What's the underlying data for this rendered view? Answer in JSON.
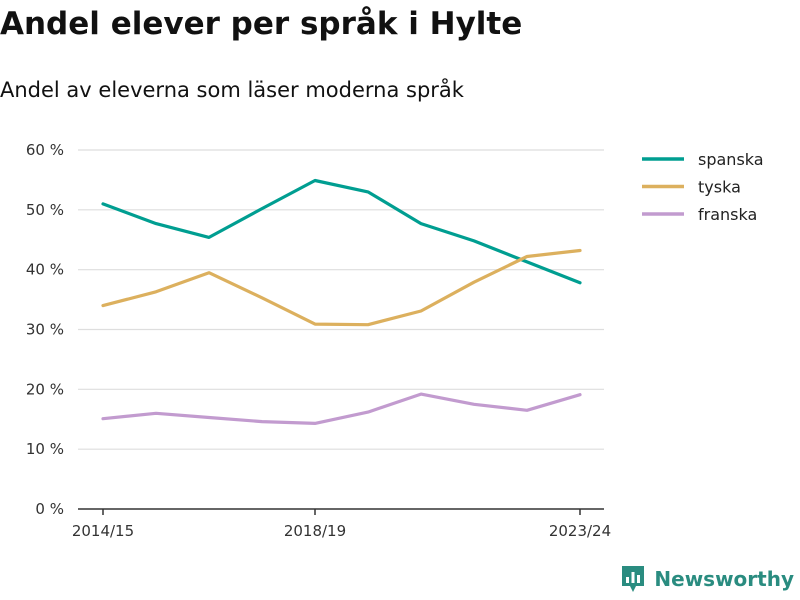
{
  "title": "Andel elever per språk i Hylte",
  "subtitle": "Andel av eleverna som läser moderna språk",
  "brand": {
    "name": "Newsworthy",
    "icon": "newsworthy-logo-icon",
    "color": "#2a8c80"
  },
  "chart_data": {
    "type": "line",
    "title": "Andel elever per språk i Hylte",
    "subtitle": "Andel av eleverna som läser moderna språk",
    "x": [
      "2014/15",
      "2015/16",
      "2016/17",
      "2017/18",
      "2018/19",
      "2019/20",
      "2020/21",
      "2021/22",
      "2022/23",
      "2023/24"
    ],
    "x_tick_labels": [
      "2014/15",
      "2018/19",
      "2023/24"
    ],
    "y_ticks": [
      0,
      10,
      20,
      30,
      40,
      50,
      60
    ],
    "y_tick_labels": [
      "0 %",
      "10 %",
      "20 %",
      "30 %",
      "40 %",
      "50 %",
      "60 %"
    ],
    "ylim": [
      0,
      60
    ],
    "grid": true,
    "legend_position": "right",
    "series": [
      {
        "name": "spanska",
        "color": "#009e91",
        "values": [
          51.0,
          47.7,
          45.4,
          50.2,
          54.9,
          53.0,
          47.7,
          44.8,
          41.3,
          37.8
        ]
      },
      {
        "name": "tyska",
        "color": "#dcb05e",
        "values": [
          34.0,
          36.3,
          39.5,
          35.3,
          30.9,
          30.8,
          33.1,
          37.9,
          42.2,
          43.2
        ]
      },
      {
        "name": "franska",
        "color": "#c29bcf",
        "values": [
          15.1,
          16.0,
          15.3,
          14.6,
          14.3,
          16.2,
          19.2,
          17.5,
          16.5,
          19.1
        ]
      }
    ]
  }
}
